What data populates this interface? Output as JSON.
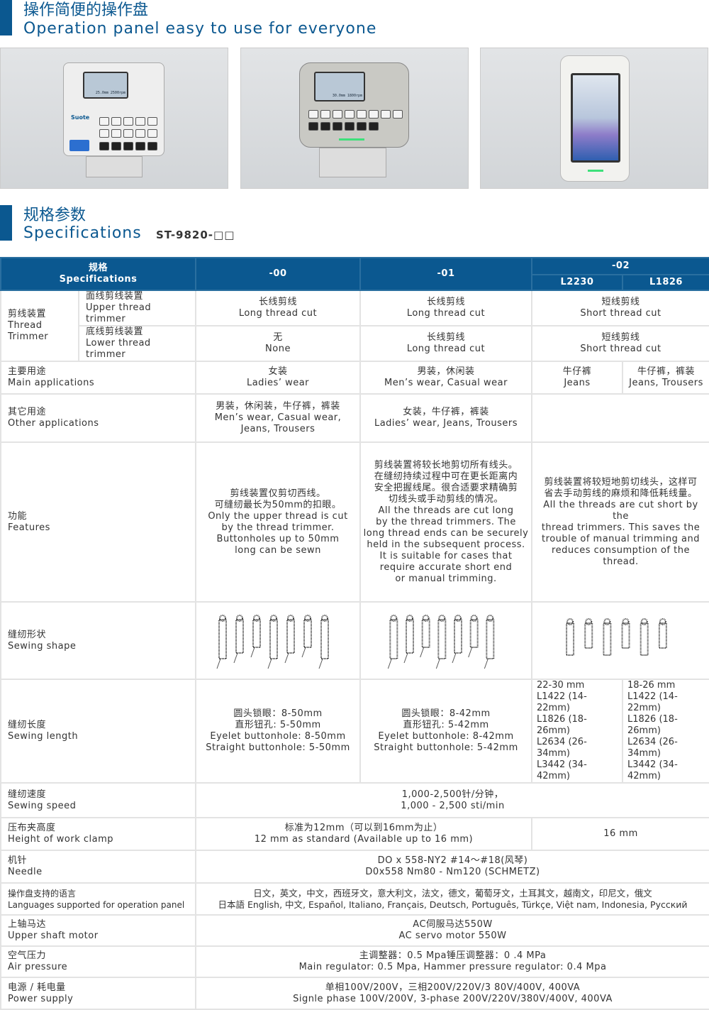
{
  "section1": {
    "title_zh": "操作简便的操作盘",
    "title_en": "Operation panel easy to use for everyone"
  },
  "section2": {
    "title_zh": "规格参数",
    "title_en": "Specifications",
    "model": "ST-9820-□□"
  },
  "panels": [
    {
      "brand": "Suote",
      "screen": "25.0mm 2500rpm"
    },
    {
      "screen": "30.0mm 1800rpm"
    },
    {
      "screen": "touch"
    }
  ],
  "colors": {
    "accent": "#0b5890",
    "grid": "#e3e3e3"
  },
  "table": {
    "header": {
      "spec_zh": "规格",
      "spec_en": "Specifications",
      "c00": "-00",
      "c01": "-01",
      "c02": "-02",
      "c02a": "L2230",
      "c02b": "L1826"
    },
    "trimmer": {
      "zh": "剪线装置",
      "en": "Thread Trimmer",
      "upper": {
        "zh": "面线剪线装置",
        "en": "Upper thread trimmer",
        "c00": [
          "长线剪线",
          "Long thread cut"
        ],
        "c01": [
          "长线剪线",
          "Long thread cut"
        ],
        "c02": [
          "短线剪线",
          "Short thread cut"
        ]
      },
      "lower": {
        "zh": "底线剪线装置",
        "en": "Lower thread trimmer",
        "c00": [
          "无",
          "None"
        ],
        "c01": [
          "长线剪线",
          "Long thread cut"
        ],
        "c02": [
          "短线剪线",
          "Short thread cut"
        ]
      }
    },
    "main_app": {
      "zh": "主要用途",
      "en": "Main applications",
      "c00": [
        "女装",
        "Ladies’ wear"
      ],
      "c01": [
        "男装，休闲装",
        "Men’s wear, Casual wear"
      ],
      "c02a": [
        "牛仔裤",
        "Jeans"
      ],
      "c02b": [
        "牛仔裤，裤装",
        "Jeans, Trousers"
      ]
    },
    "other_app": {
      "zh": "其它用途",
      "en": "Other applications",
      "c00": [
        "男装，休闲装，牛仔裤，裤装",
        "Men’s wear, Casual wear,",
        "Jeans, Trousers"
      ],
      "c01": [
        "女装，牛仔裤，裤装",
        "Ladies’ wear, Jeans, Trousers"
      ]
    },
    "features": {
      "zh": "功能",
      "en": "Features",
      "c00": [
        "剪线装置仅剪切西线。",
        "可缝纫最长为50mm的扣眼。",
        "Only the upper thread is cut",
        "by the thread trimmer.",
        "Buttonholes up to 50mm",
        "long can be sewn"
      ],
      "c01": [
        "剪线装置将较长地剪切所有线头。",
        "在缝纫持续过程中可在更长距离内",
        "安全把握线尾。很合适要求精确剪",
        "切线头或手动剪线的情况。",
        "All the threads are cut long",
        "by the thread trimmers. The",
        "long thread ends can be securely",
        "held in the subsequent process.",
        "It is suitable for cases that",
        "require accurate short end",
        "or manual trimming."
      ],
      "c02": [
        "剪线装置将较短地剪切线头，这样可",
        "省去手动剪线的麻烦和降低耗线量。",
        "All the threads are cut short by the",
        "thread trimmers. This saves the",
        "trouble of manual trimming and",
        "reduces consumption of the thread."
      ]
    },
    "shape": {
      "zh": "缝纫形状",
      "en": "Sewing shape"
    },
    "length": {
      "zh": "缝纫长度",
      "en": "Sewing length",
      "c00": [
        "圆头锁眼：8-50mm",
        "直形钮孔: 5-50mm",
        "Eyelet buttonhole: 8-50mm",
        "Straight buttonhole: 5-50mm"
      ],
      "c01": [
        "圆头锁眼：8-42mm",
        "直形钮孔: 5-42mm",
        "Eyelet buttonhole: 8-42mm",
        "Straight buttonhole: 5-42mm"
      ],
      "c02a": [
        "22-30 mm",
        "L1422 (14-22mm)",
        "L1826 (18-26mm)",
        "L2634 (26-34mm)",
        "L3442 (34-42mm)"
      ],
      "c02b": [
        "18-26 mm",
        "L1422 (14-22mm)",
        "L1826 (18-26mm)",
        "L2634 (26-34mm)",
        "L3442 (34-42mm)"
      ]
    },
    "speed": {
      "zh": "缝纫速度",
      "en": "Sewing speed",
      "val": [
        "1,000-2,500针/分钟，",
        "1,000 - 2,500 sti/min"
      ]
    },
    "clamp": {
      "zh": "压布夹高度",
      "en": "Height of work clamp",
      "val": [
        "标准为12mm（可以到16mm为止）",
        "12 mm as standard (Available up to 16 mm)"
      ],
      "c02": "16 mm"
    },
    "needle": {
      "zh": "机针",
      "en": "Needle",
      "val": [
        "DO x 558-NY2 #14～#18(风琴)",
        "D0x558 Nm80 - Nm120 (SCHMETZ)"
      ]
    },
    "lang": {
      "zh": "操作盘支持的语言",
      "en": "Languages supported for operation panel",
      "val": [
        "日文，英文，中文，西班牙文，意大利文，法文，德文，葡萄牙文，土耳其文，越南文，印尼文，俄文",
        "日本語 English, 中文, Español, Italiano, Français, Deutsch, Português, Türkçe, Việt nam, Indonesia, Русский"
      ]
    },
    "motor": {
      "zh": "上轴马达",
      "en": "Upper shaft motor",
      "val": [
        "AC伺服马达550W",
        "AC servo motor 550W"
      ]
    },
    "air": {
      "zh": "空气压力",
      "en": "Air pressure",
      "val": [
        "主调整器：0.5 Mpa锤压调整器：0 .4 MPa",
        "Main regulator: 0.5 Mpa, Hammer pressure regulator: 0.4 Mpa"
      ]
    },
    "power": {
      "zh": "电源 / 耗电量",
      "en": "Power supply",
      "val": [
        "单相100V/200V，三相200V/220V/3 80V/400V, 400VA",
        "Signle phase 100V/200V, 3-phase 200V/220V/380V/400V, 400VA"
      ]
    }
  }
}
